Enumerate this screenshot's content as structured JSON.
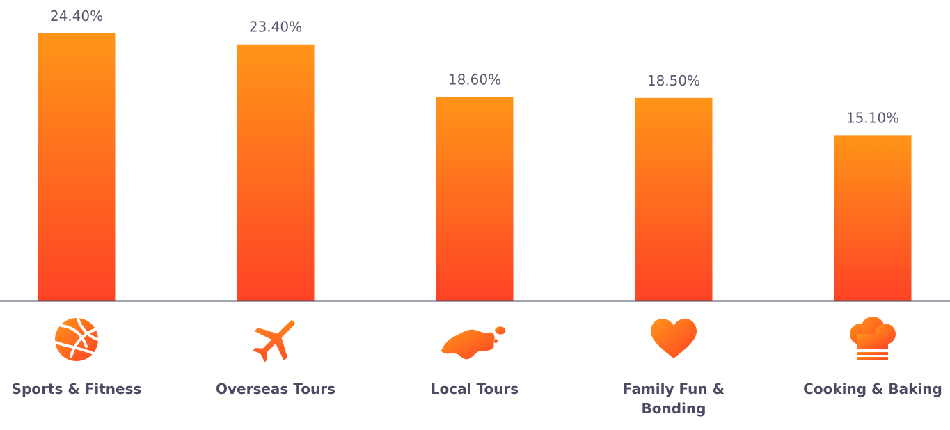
{
  "chart_data": {
    "type": "bar",
    "categories": [
      "Sports & Fitness",
      "Overseas Tours",
      "Local Tours",
      "Family Fun & Bonding",
      "Cooking & Baking"
    ],
    "category_lines": [
      [
        "Sports & Fitness"
      ],
      [
        "Overseas Tours"
      ],
      [
        "Local Tours"
      ],
      [
        "Family Fun &",
        "Bonding"
      ],
      [
        "Cooking & Baking"
      ]
    ],
    "values": [
      24.4,
      23.4,
      18.6,
      18.5,
      15.1
    ],
    "value_labels": [
      "24.40%",
      "23.40%",
      "18.60%",
      "18.50%",
      "15.10%"
    ],
    "icons": [
      "volleyball-icon",
      "airplane-icon",
      "singapore-map-icon",
      "heart-icon",
      "chef-hat-icon"
    ],
    "ylim": [
      0,
      24.4
    ],
    "grid": false,
    "legend": "none",
    "colors": {
      "bar_top": "#ff9518",
      "bar_bottom": "#ff4326",
      "axis": "#4a4a63",
      "value_text": "#5b5870",
      "category_text": "#4a4a63"
    }
  }
}
